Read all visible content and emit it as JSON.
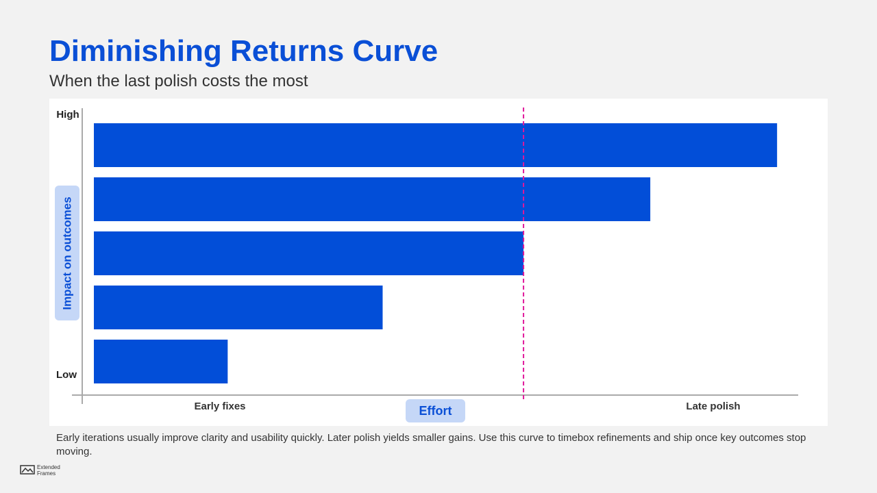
{
  "chart_data": {
    "type": "hbar",
    "title": "Diminishing Returns Curve",
    "subtitle": "When the last polish costs the most",
    "categories": [
      null,
      null,
      null,
      null,
      null
    ],
    "values": [
      97,
      79,
      61,
      41,
      19
    ],
    "color": "#024ed8",
    "xlim": [
      0,
      100
    ],
    "x_axis_labels": [
      "Early fixes",
      "Late polish"
    ],
    "x_axis_title": "Effort",
    "y_axis_labels": [
      "High",
      "Low"
    ],
    "y_axis_title": "Impact on outcomes",
    "reference_line": 61,
    "reference_color": "#e0189a"
  },
  "footer": {
    "note": "Early iterations usually improve clarity and usability quickly. Later polish yields smaller gains. Use this curve to timebox refinements and ship once key outcomes stop moving.",
    "brand": "Extended Frames"
  }
}
